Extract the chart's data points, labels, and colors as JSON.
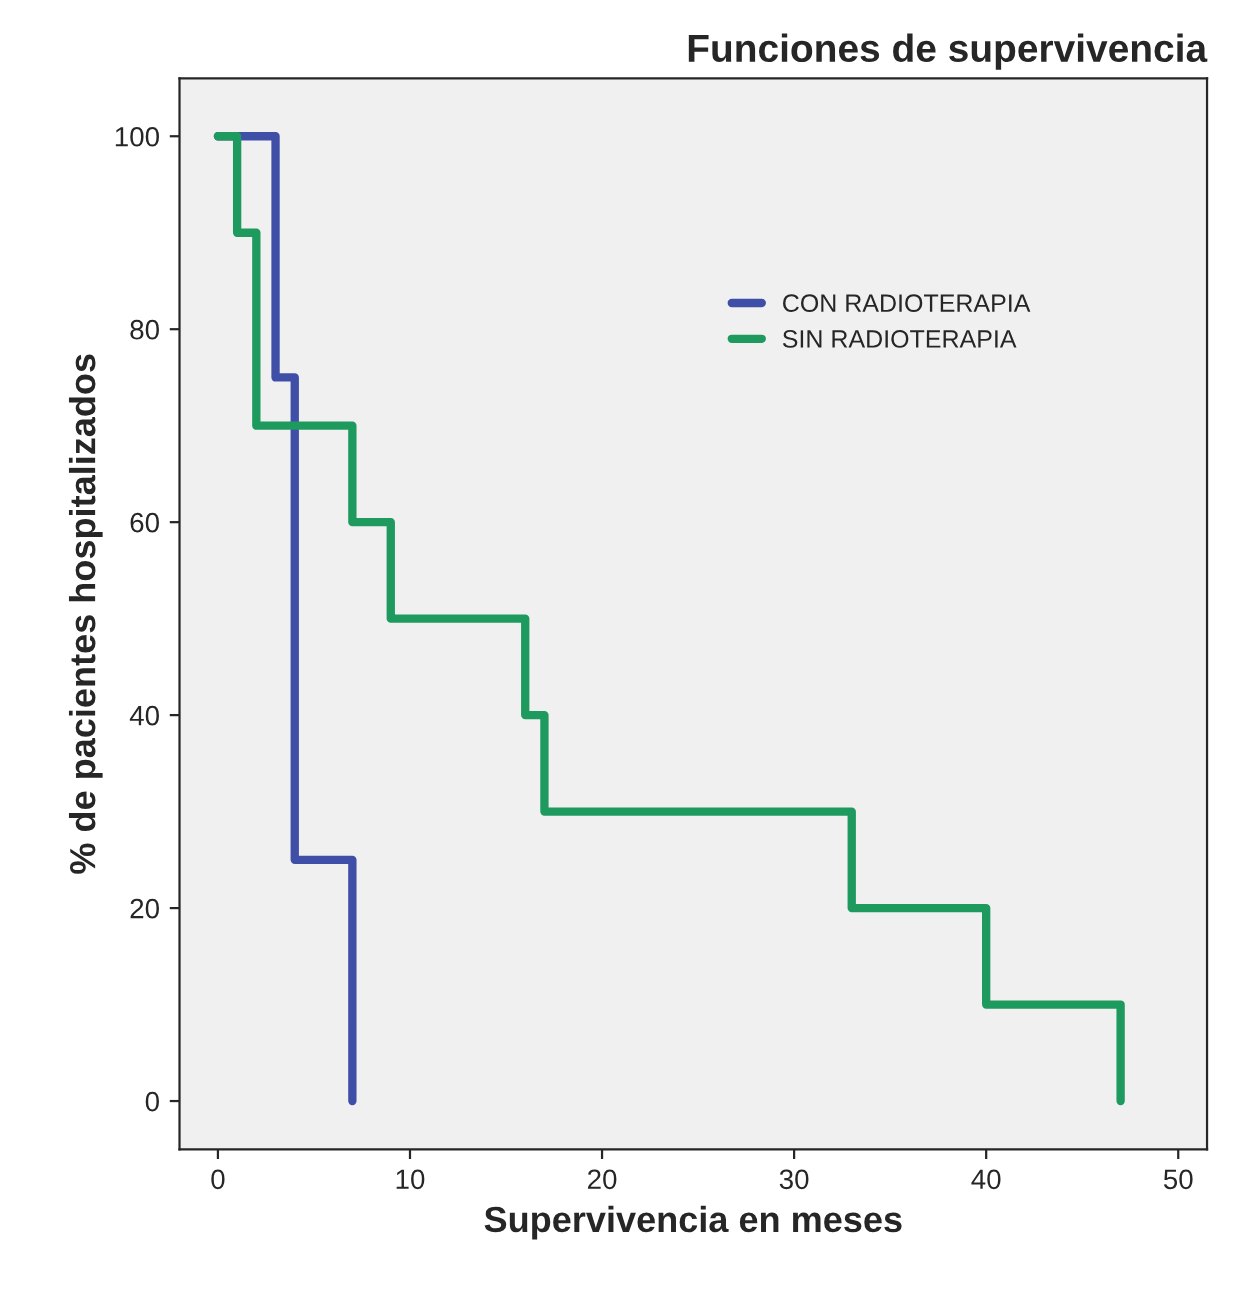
{
  "chart_data": {
    "type": "step",
    "title": "Funciones de supervivencia",
    "xlabel": "Supervivencia en meses",
    "ylabel": "% de pacientes hospitalizados",
    "series": [
      {
        "name": "CON RADIOTERAPIA",
        "color": "#3f4fa8",
        "x": [
          0,
          3,
          4,
          7
        ],
        "values": [
          100,
          75,
          25,
          0
        ]
      },
      {
        "name": "SIN RADIOTERAPIA",
        "color": "#1f9a5f",
        "x": [
          0,
          1,
          2,
          7,
          9,
          16,
          17,
          33,
          40,
          47
        ],
        "values": [
          100,
          90,
          70,
          60,
          50,
          40,
          30,
          20,
          10,
          0
        ]
      }
    ],
    "xlim": [
      -2,
      51.5
    ],
    "ylim": [
      -5,
      106
    ],
    "xticks": [
      0,
      10,
      20,
      30,
      40,
      50
    ],
    "yticks": [
      0,
      20,
      40,
      60,
      80,
      100
    ],
    "grid": false,
    "legend": "top right",
    "marker": "none",
    "line_style": "solid"
  }
}
